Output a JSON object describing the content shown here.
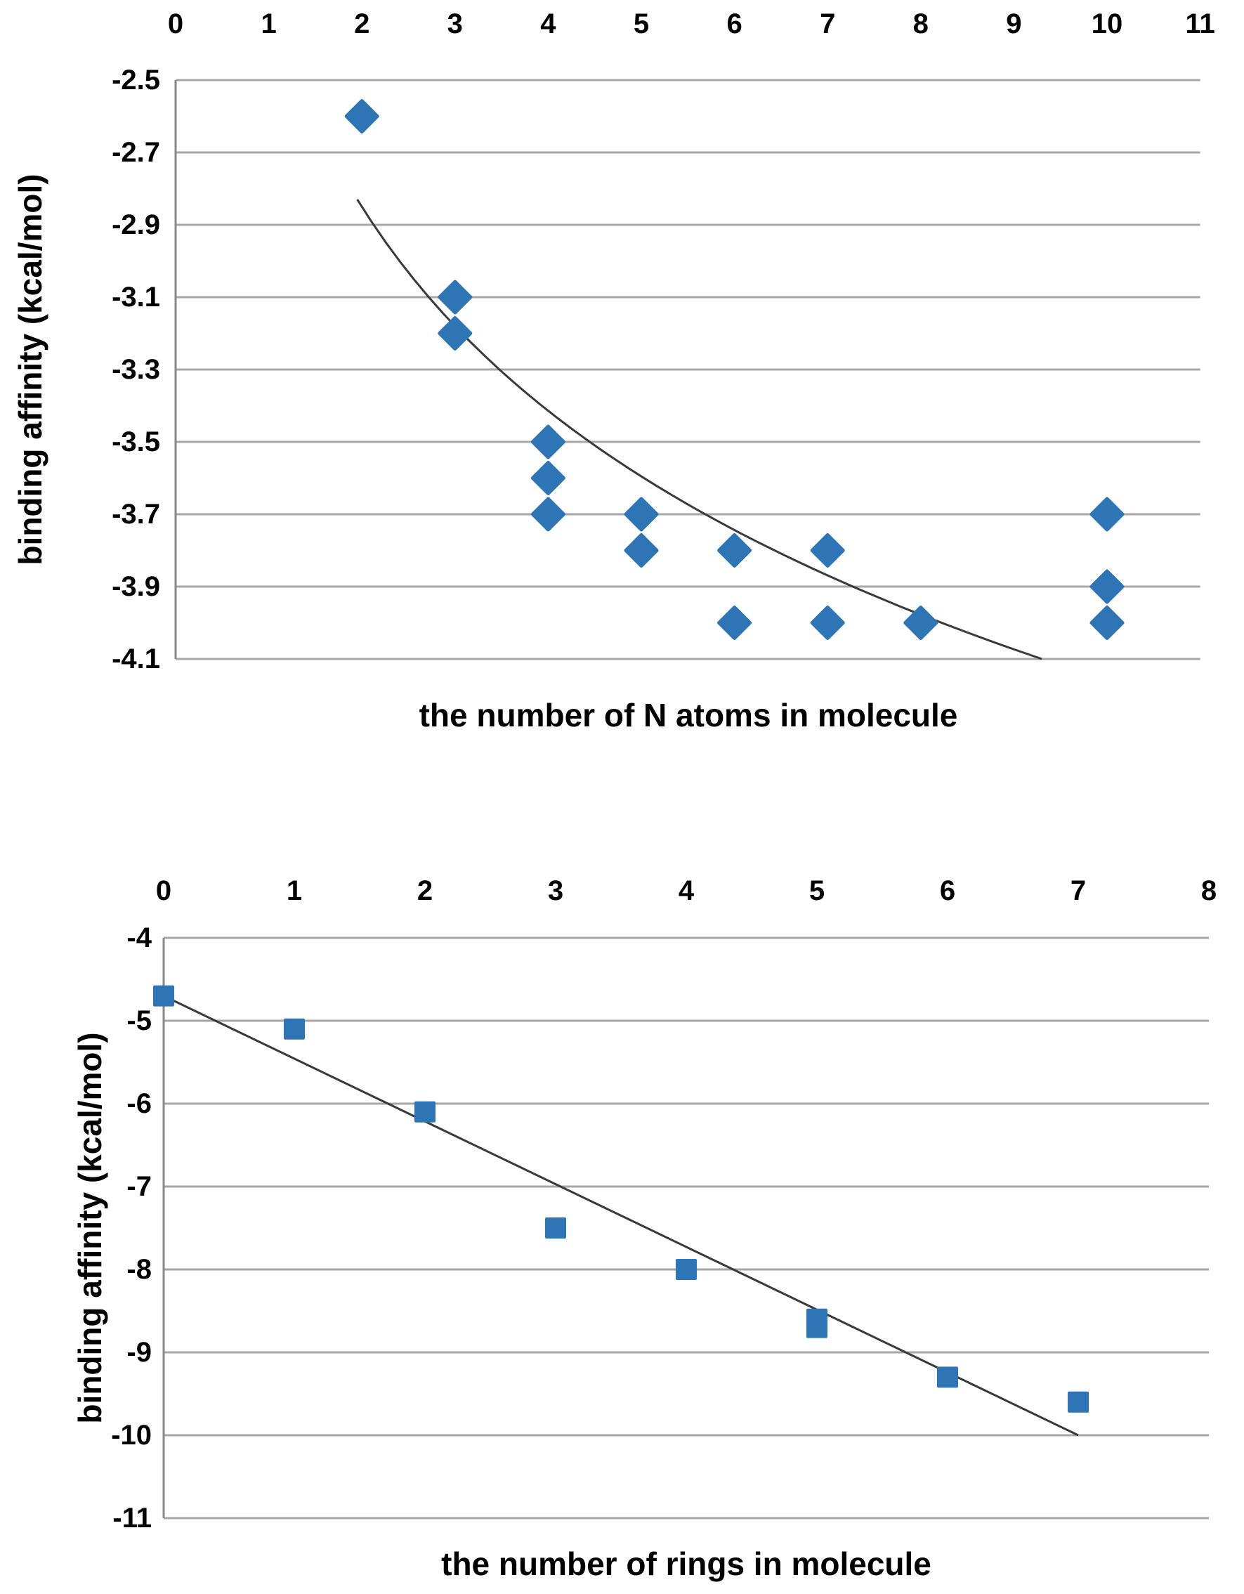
{
  "figure": {
    "description": "Two scatter charts of binding affinity",
    "background": "#ffffff"
  },
  "colors": {
    "marker_blue": "#2E75B6",
    "gridline_gray": "#A7A7A7",
    "axis_gray": "#8A8A8A",
    "trend_dark": "#3A3A3A",
    "text_black": "#000000"
  },
  "chart_data": [
    {
      "type": "scatter",
      "marker": "diamond",
      "xlabel": "the number of N atoms in molecule",
      "ylabel": "binding affinity (kcal/mol)",
      "x_axis_position": "top",
      "grid": true,
      "legend": "none",
      "xlim": [
        0,
        11
      ],
      "ylim": [
        -4.1,
        -2.5
      ],
      "x_ticks": [
        0,
        1,
        2,
        3,
        4,
        5,
        6,
        7,
        8,
        9,
        10,
        11
      ],
      "x_tick_labels": [
        "0",
        "1",
        "2",
        "3",
        "4",
        "5",
        "6",
        "7",
        "8",
        "9",
        "10",
        "11"
      ],
      "y_ticks": [
        -2.5,
        -2.7,
        -2.9,
        -3.1,
        -3.3,
        -3.5,
        -3.7,
        -3.9,
        -4.1
      ],
      "y_tick_labels": [
        "-2.5",
        "-2.7",
        "-2.9",
        "-3.1",
        "-3.3",
        "-3.5",
        "-3.7",
        "-3.9",
        "-4.1"
      ],
      "points": [
        [
          2,
          -2.6
        ],
        [
          3,
          -3.1
        ],
        [
          3,
          -3.2
        ],
        [
          4,
          -3.5
        ],
        [
          4,
          -3.6
        ],
        [
          4,
          -3.7
        ],
        [
          5,
          -3.7
        ],
        [
          5,
          -3.8
        ],
        [
          6,
          -3.8
        ],
        [
          6,
          -4.0
        ],
        [
          7,
          -3.8
        ],
        [
          7,
          -4.0
        ],
        [
          8,
          -4.0
        ],
        [
          10,
          -3.7
        ],
        [
          10,
          -3.9
        ],
        [
          10,
          -4.0
        ]
      ],
      "trendline": {
        "type": "log",
        "m": -0.813,
        "c": -2.287,
        "x_start": 1.95,
        "x_end": 9.3
      }
    },
    {
      "type": "scatter",
      "marker": "square",
      "xlabel": "the number of rings in molecule",
      "ylabel": "binding affinity (kcal/mol)",
      "x_axis_position": "top",
      "grid": true,
      "legend": "none",
      "xlim": [
        0,
        8
      ],
      "ylim": [
        -11,
        -4
      ],
      "x_ticks": [
        0,
        1,
        2,
        3,
        4,
        5,
        6,
        7,
        8
      ],
      "x_tick_labels": [
        "0",
        "1",
        "2",
        "3",
        "4",
        "5",
        "6",
        "7",
        "8"
      ],
      "y_ticks": [
        -4,
        -5,
        -6,
        -7,
        -8,
        -9,
        -10,
        -11
      ],
      "y_tick_labels": [
        "-4",
        "-5",
        "-6",
        "-7",
        "-8",
        "-9",
        "-10",
        "-11"
      ],
      "points": [
        [
          0,
          -4.7
        ],
        [
          1,
          -5.1
        ],
        [
          2,
          -6.1
        ],
        [
          3,
          -7.5
        ],
        [
          4,
          -8.0
        ],
        [
          5,
          -8.6
        ],
        [
          5,
          -8.7
        ],
        [
          6,
          -9.3
        ],
        [
          7,
          -9.6
        ]
      ],
      "trendline": {
        "type": "linear",
        "x_start": 0,
        "y_start": -4.7,
        "x_end": 7,
        "y_end": -10.0
      }
    }
  ]
}
